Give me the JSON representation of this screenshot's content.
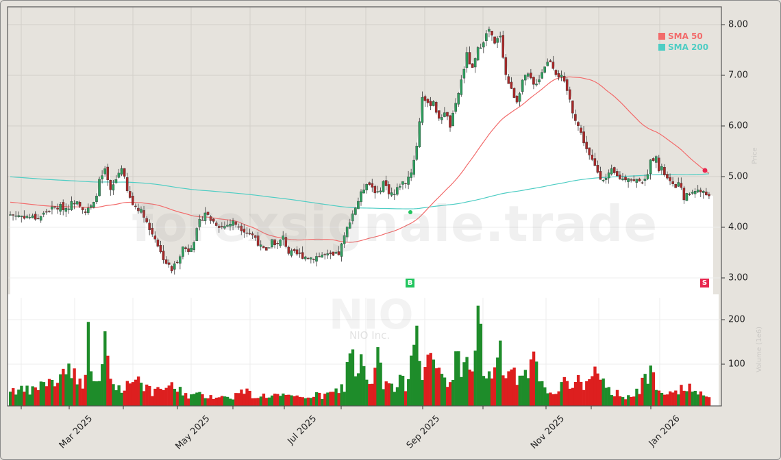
{
  "chart_data": {
    "type": "candlestick",
    "title": "",
    "ticker": "NIO",
    "company": "NIO Inc.",
    "watermark": "forexsignale.trade",
    "xlabel": "",
    "ylabel_price": "Price",
    "ylabel_volume": "Volume (1e6)",
    "price_ylim": [
      2.7,
      8.35
    ],
    "volume_ylim": [
      0,
      240
    ],
    "price_ticks": [
      "8.00",
      "7.00",
      "6.00",
      "5.00",
      "4.00",
      "3.00"
    ],
    "volume_ticks": [
      "200",
      "100"
    ],
    "x_ticks": [
      "Mar 2025",
      "May 2025",
      "Jul 2025",
      "Sep 2025",
      "Nov 2025",
      "Jan 2026"
    ],
    "legend": [
      {
        "label": "SMA 50",
        "color": "#f26b6b"
      },
      {
        "label": "SMA 200",
        "color": "#4ecdc4"
      }
    ],
    "colors": {
      "up": "#2e9e5e",
      "down": "#a82828",
      "vol_up": "#1e8c2a",
      "vol_down": "#dd1f1f",
      "sma50": "#f26b6b",
      "sma200": "#4ecdc4",
      "bg": "#e6e3dd",
      "fill": "#ffffff"
    },
    "signals": [
      {
        "type": "B",
        "label": "B",
        "price": 4.28,
        "index": 146,
        "color": "#22c55e"
      },
      {
        "type": "S",
        "label": "S",
        "price": 5.12,
        "index": 251,
        "color": "#e8264e"
      }
    ],
    "close_anchors": [
      [
        0,
        4.25
      ],
      [
        5,
        4.22
      ],
      [
        10,
        4.18
      ],
      [
        14,
        4.35
      ],
      [
        18,
        4.4
      ],
      [
        20,
        4.38
      ],
      [
        24,
        4.55
      ],
      [
        27,
        4.3
      ],
      [
        30,
        4.45
      ],
      [
        32,
        4.9
      ],
      [
        34,
        5.1
      ],
      [
        36,
        4.7
      ],
      [
        38,
        4.95
      ],
      [
        40,
        5.2
      ],
      [
        42,
        4.7
      ],
      [
        44,
        4.45
      ],
      [
        46,
        4.38
      ],
      [
        48,
        4.25
      ],
      [
        50,
        3.95
      ],
      [
        52,
        3.8
      ],
      [
        54,
        3.5
      ],
      [
        56,
        3.3
      ],
      [
        58,
        3.15
      ],
      [
        60,
        3.35
      ],
      [
        62,
        3.6
      ],
      [
        64,
        3.55
      ],
      [
        66,
        3.75
      ],
      [
        68,
        4.1
      ],
      [
        70,
        4.3
      ],
      [
        72,
        4.15
      ],
      [
        76,
        4.0
      ],
      [
        80,
        4.1
      ],
      [
        84,
        3.95
      ],
      [
        88,
        3.8
      ],
      [
        90,
        3.6
      ],
      [
        92,
        3.5
      ],
      [
        94,
        3.75
      ],
      [
        96,
        3.65
      ],
      [
        98,
        3.8
      ],
      [
        100,
        3.5
      ],
      [
        104,
        3.45
      ],
      [
        108,
        3.4
      ],
      [
        112,
        3.45
      ],
      [
        116,
        3.42
      ],
      [
        118,
        3.48
      ],
      [
        120,
        3.8
      ],
      [
        122,
        4.15
      ],
      [
        124,
        4.4
      ],
      [
        126,
        4.65
      ],
      [
        128,
        4.9
      ],
      [
        130,
        4.8
      ],
      [
        132,
        4.65
      ],
      [
        134,
        4.9
      ],
      [
        136,
        4.7
      ],
      [
        138,
        4.65
      ],
      [
        140,
        4.85
      ],
      [
        142,
        4.9
      ],
      [
        144,
        5.1
      ],
      [
        146,
        5.6
      ],
      [
        148,
        6.6
      ],
      [
        150,
        6.4
      ],
      [
        152,
        6.5
      ],
      [
        154,
        6.1
      ],
      [
        156,
        6.3
      ],
      [
        158,
        6.0
      ],
      [
        160,
        6.4
      ],
      [
        162,
        6.9
      ],
      [
        164,
        7.4
      ],
      [
        166,
        7.1
      ],
      [
        168,
        7.5
      ],
      [
        170,
        7.7
      ],
      [
        172,
        7.9
      ],
      [
        174,
        7.6
      ],
      [
        176,
        7.8
      ],
      [
        178,
        7.0
      ],
      [
        180,
        6.7
      ],
      [
        182,
        6.5
      ],
      [
        184,
        6.9
      ],
      [
        186,
        7.0
      ],
      [
        188,
        6.8
      ],
      [
        190,
        6.95
      ],
      [
        192,
        7.2
      ],
      [
        194,
        7.3
      ],
      [
        196,
        7.05
      ],
      [
        198,
        6.95
      ],
      [
        200,
        6.7
      ],
      [
        202,
        6.3
      ],
      [
        204,
        6.0
      ],
      [
        206,
        5.7
      ],
      [
        208,
        5.4
      ],
      [
        210,
        5.2
      ],
      [
        212,
        5.0
      ],
      [
        214,
        4.95
      ],
      [
        216,
        5.1
      ],
      [
        218,
        5.0
      ],
      [
        220,
        4.95
      ],
      [
        222,
        5.0
      ],
      [
        224,
        4.9
      ],
      [
        226,
        4.95
      ],
      [
        228,
        4.9
      ],
      [
        230,
        5.3
      ],
      [
        232,
        5.45
      ],
      [
        233,
        5.1
      ],
      [
        234,
        5.15
      ],
      [
        236,
        4.95
      ],
      [
        238,
        4.8
      ],
      [
        240,
        4.85
      ],
      [
        242,
        4.6
      ],
      [
        244,
        4.65
      ],
      [
        246,
        4.75
      ],
      [
        248,
        4.7
      ],
      [
        250,
        4.65
      ],
      [
        251,
        4.66
      ]
    ],
    "volume_profile": [
      [
        0,
        45
      ],
      [
        4,
        40
      ],
      [
        8,
        40
      ],
      [
        12,
        60
      ],
      [
        16,
        55
      ],
      [
        18,
        80
      ],
      [
        20,
        90
      ],
      [
        22,
        95
      ],
      [
        24,
        55
      ],
      [
        26,
        60
      ],
      [
        28,
        155
      ],
      [
        30,
        70
      ],
      [
        32,
        50
      ],
      [
        34,
        155
      ],
      [
        36,
        65
      ],
      [
        38,
        45
      ],
      [
        40,
        50
      ],
      [
        42,
        50
      ],
      [
        44,
        75
      ],
      [
        46,
        70
      ],
      [
        48,
        55
      ],
      [
        50,
        40
      ],
      [
        52,
        35
      ],
      [
        56,
        50
      ],
      [
        60,
        45
      ],
      [
        64,
        30
      ],
      [
        68,
        30
      ],
      [
        72,
        30
      ],
      [
        76,
        25
      ],
      [
        80,
        28
      ],
      [
        84,
        40
      ],
      [
        88,
        28
      ],
      [
        92,
        30
      ],
      [
        96,
        30
      ],
      [
        100,
        25
      ],
      [
        104,
        25
      ],
      [
        108,
        30
      ],
      [
        112,
        28
      ],
      [
        116,
        35
      ],
      [
        120,
        50
      ],
      [
        122,
        140
      ],
      [
        124,
        90
      ],
      [
        126,
        100
      ],
      [
        128,
        60
      ],
      [
        130,
        50
      ],
      [
        132,
        120
      ],
      [
        134,
        50
      ],
      [
        136,
        60
      ],
      [
        138,
        40
      ],
      [
        140,
        60
      ],
      [
        142,
        55
      ],
      [
        144,
        120
      ],
      [
        146,
        220
      ],
      [
        148,
        80
      ],
      [
        150,
        110
      ],
      [
        152,
        90
      ],
      [
        154,
        90
      ],
      [
        156,
        65
      ],
      [
        158,
        60
      ],
      [
        160,
        110
      ],
      [
        162,
        100
      ],
      [
        164,
        100
      ],
      [
        166,
        80
      ],
      [
        168,
        230
      ],
      [
        170,
        80
      ],
      [
        172,
        80
      ],
      [
        174,
        80
      ],
      [
        176,
        120
      ],
      [
        178,
        70
      ],
      [
        180,
        90
      ],
      [
        182,
        65
      ],
      [
        184,
        60
      ],
      [
        186,
        80
      ],
      [
        188,
        110
      ],
      [
        190,
        60
      ],
      [
        192,
        40
      ],
      [
        194,
        40
      ],
      [
        196,
        45
      ],
      [
        198,
        50
      ],
      [
        200,
        60
      ],
      [
        202,
        60
      ],
      [
        204,
        60
      ],
      [
        206,
        55
      ],
      [
        208,
        70
      ],
      [
        210,
        80
      ],
      [
        212,
        60
      ],
      [
        214,
        45
      ],
      [
        216,
        40
      ],
      [
        218,
        35
      ],
      [
        220,
        30
      ],
      [
        222,
        30
      ],
      [
        224,
        30
      ],
      [
        226,
        40
      ],
      [
        228,
        70
      ],
      [
        230,
        80
      ],
      [
        232,
        60
      ],
      [
        234,
        40
      ],
      [
        236,
        45
      ],
      [
        238,
        40
      ],
      [
        240,
        45
      ],
      [
        242,
        40
      ],
      [
        244,
        45
      ],
      [
        246,
        40
      ],
      [
        248,
        30
      ],
      [
        250,
        30
      ],
      [
        251,
        25
      ]
    ],
    "n_bars": 252
  }
}
